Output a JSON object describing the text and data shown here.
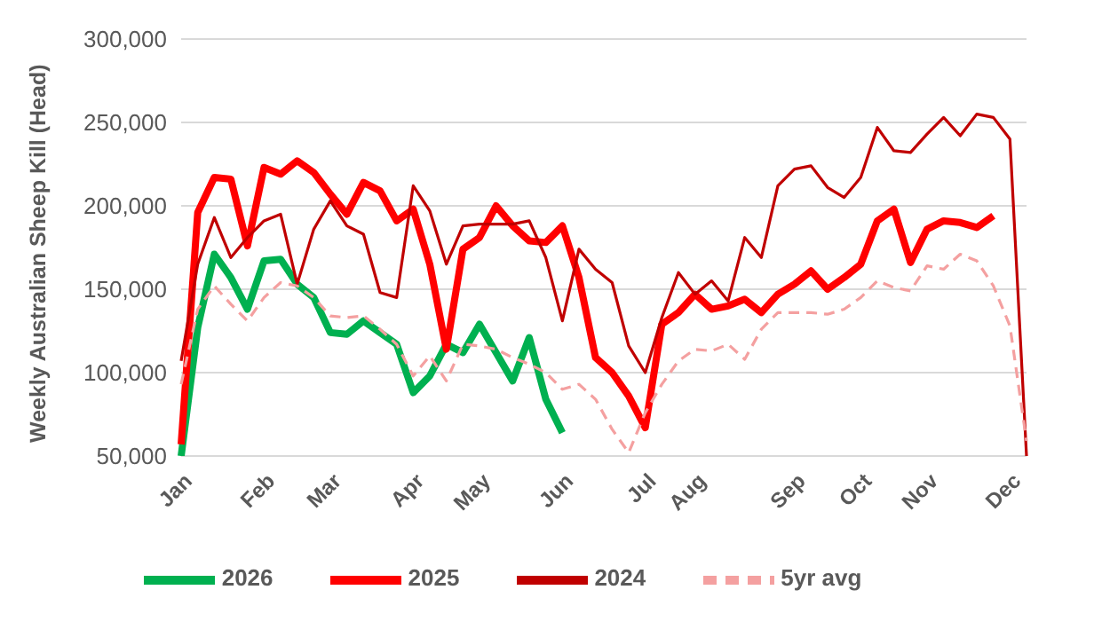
{
  "chart_data": {
    "type": "line",
    "ylabel": "Weekly Australian Sheep Kill (Head)",
    "categories": [
      "Jan",
      null,
      null,
      null,
      null,
      "Feb",
      null,
      null,
      null,
      "Mar",
      null,
      null,
      null,
      null,
      "Apr",
      null,
      null,
      null,
      "May",
      null,
      null,
      null,
      null,
      "Jun",
      null,
      null,
      null,
      null,
      "Jul",
      null,
      null,
      "Aug",
      null,
      null,
      null,
      null,
      null,
      "Sep",
      null,
      null,
      null,
      "Oct",
      null,
      null,
      null,
      "Nov",
      null,
      null,
      null,
      null,
      "Dec",
      null
    ],
    "ylim": [
      50000,
      300000
    ],
    "yticks": [
      {
        "value": 50000,
        "label": "50,000"
      },
      {
        "value": 100000,
        "label": "100,000"
      },
      {
        "value": 150000,
        "label": "150,000"
      },
      {
        "value": 200000,
        "label": "200,000"
      },
      {
        "value": 250000,
        "label": "250,000"
      },
      {
        "value": 300000,
        "label": "300,000"
      }
    ],
    "grid": "y",
    "legend": "bottom",
    "series": [
      {
        "name": "2026",
        "color": "#00b050",
        "line_style": "solid",
        "values": [
          50000,
          127000,
          171000,
          157000,
          138000,
          167000,
          168000,
          153000,
          145000,
          124000,
          123000,
          131000,
          124000,
          117000,
          88000,
          98000,
          117000,
          112000,
          129000,
          112000,
          95000,
          121000,
          84000,
          64000,
          null,
          null,
          null,
          null,
          null,
          null,
          null,
          null,
          null,
          null,
          null,
          null,
          null,
          null,
          null,
          null,
          null,
          null,
          null,
          null,
          null,
          null,
          null,
          null,
          null,
          null,
          null,
          null
        ]
      },
      {
        "name": "2025",
        "color": "#ff0000",
        "line_style": "solid",
        "values": [
          57000,
          196000,
          217000,
          216000,
          176000,
          223000,
          219000,
          227000,
          220000,
          207000,
          195000,
          214000,
          209000,
          191000,
          198000,
          165000,
          114000,
          174000,
          181000,
          200000,
          188000,
          179000,
          178000,
          188000,
          157000,
          109000,
          100000,
          86000,
          67000,
          129000,
          136000,
          147000,
          138000,
          140000,
          144000,
          136000,
          147000,
          153000,
          161000,
          150000,
          157000,
          165000,
          191000,
          198000,
          166000,
          186000,
          191000,
          190000,
          187000,
          194000,
          null,
          null
        ]
      },
      {
        "name": "2024",
        "color": "#c00000",
        "line_style": "solid",
        "values": [
          107000,
          165000,
          193000,
          169000,
          181000,
          191000,
          195000,
          153000,
          186000,
          203000,
          188000,
          183000,
          148000,
          145000,
          212000,
          197000,
          165000,
          188000,
          189000,
          189000,
          189000,
          191000,
          169000,
          131000,
          174000,
          162000,
          154000,
          116000,
          100000,
          133000,
          160000,
          147000,
          155000,
          143000,
          181000,
          169000,
          212000,
          222000,
          224000,
          211000,
          205000,
          217000,
          247000,
          233000,
          232000,
          243000,
          253000,
          242000,
          255000,
          253000,
          240000,
          50000
        ]
      },
      {
        "name": "5yr avg",
        "color": "#f4a0a0",
        "line_style": "dashed",
        "values": [
          93000,
          138000,
          152000,
          141000,
          131000,
          145000,
          154000,
          152000,
          145000,
          134000,
          133000,
          134000,
          126000,
          117000,
          98000,
          110000,
          95000,
          117000,
          116000,
          114000,
          109000,
          105000,
          100000,
          90000,
          93000,
          84000,
          66000,
          52000,
          76000,
          93000,
          107000,
          114000,
          113000,
          117000,
          108000,
          126000,
          136000,
          136000,
          136000,
          135000,
          138000,
          145000,
          155000,
          151000,
          149000,
          164000,
          162000,
          171000,
          167000,
          152000,
          128000,
          59000
        ]
      }
    ]
  }
}
